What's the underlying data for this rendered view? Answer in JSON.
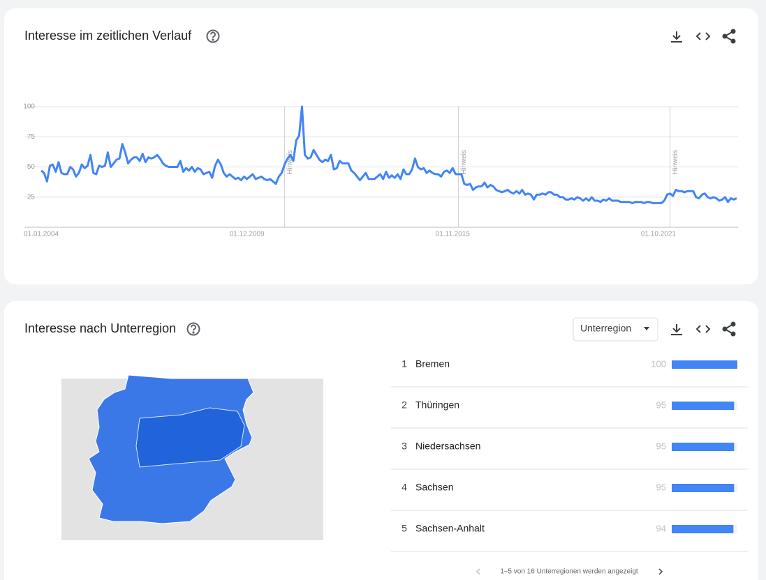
{
  "timeline_card": {
    "title": "Interesse im zeitlichen Verlauf",
    "chart_data": {
      "type": "line",
      "categories": [
        "01.01.2004",
        null,
        null,
        null,
        null,
        null,
        null,
        null,
        null,
        null,
        null,
        null,
        null,
        null,
        null,
        null,
        null,
        null,
        null,
        null,
        null,
        null,
        null,
        null,
        null,
        null,
        null,
        null,
        null,
        null,
        null,
        null,
        null,
        null,
        null,
        null,
        null,
        null,
        null,
        null,
        null,
        null,
        null,
        null,
        null,
        null,
        null,
        null,
        null,
        null,
        null,
        null,
        null,
        null,
        null,
        null,
        null,
        null,
        null,
        null,
        null,
        null,
        null,
        null,
        null,
        null,
        null,
        null,
        null,
        null,
        null,
        "01.12.2009",
        null,
        null,
        null,
        null,
        null,
        null,
        null,
        null,
        null,
        null,
        null,
        null,
        null,
        null,
        null,
        null,
        null,
        null,
        null,
        null,
        null,
        null,
        null,
        null,
        null,
        null,
        null,
        null,
        null,
        null,
        null,
        null,
        null,
        null,
        null,
        null,
        null,
        null,
        null,
        null,
        null,
        null,
        null,
        null,
        null,
        null,
        null,
        null,
        null,
        null,
        null,
        null,
        null,
        null,
        null,
        null,
        null,
        null,
        null,
        null,
        null,
        null,
        null,
        null,
        null,
        null,
        null,
        null,
        null,
        null,
        "01.11.2015",
        null,
        null,
        null,
        null,
        null,
        null,
        null,
        null,
        null,
        null,
        null,
        null,
        null,
        null,
        null,
        null,
        null,
        null,
        null,
        null,
        null,
        null,
        null,
        null,
        null,
        null,
        null,
        null,
        null,
        null,
        null,
        null,
        null,
        null,
        null,
        null,
        null,
        null,
        null,
        null,
        null,
        null,
        null,
        null,
        null,
        null,
        null,
        null,
        null,
        null,
        null,
        null,
        null,
        null,
        null,
        null,
        null,
        null,
        null,
        null,
        null,
        null,
        null,
        null,
        null,
        null,
        null,
        null,
        null,
        null,
        "01.10.2021",
        null,
        null,
        null,
        null,
        null,
        null,
        null,
        null,
        null,
        null,
        null,
        null,
        null,
        null,
        null,
        null,
        null,
        null,
        null,
        null,
        null,
        null,
        null,
        null,
        null,
        null,
        null
      ],
      "series": [
        {
          "color": "#4285f4",
          "values": [
            47,
            45,
            38,
            51,
            52,
            46,
            54,
            45,
            44,
            44,
            50,
            48,
            42,
            45,
            52,
            49,
            51,
            60,
            45,
            44,
            51,
            50,
            51,
            62,
            50,
            53,
            56,
            57,
            69,
            62,
            53,
            56,
            58,
            58,
            55,
            61,
            54,
            58,
            57,
            58,
            60,
            57,
            53,
            51,
            50,
            50,
            50,
            50,
            55,
            46,
            49,
            47,
            50,
            46,
            49,
            48,
            44,
            45,
            46,
            41,
            51,
            56,
            52,
            45,
            42,
            44,
            42,
            40,
            41,
            39,
            42,
            40,
            42,
            44,
            40,
            41,
            42,
            40,
            39,
            40,
            38,
            36,
            42,
            45,
            52,
            57,
            60,
            55,
            72,
            76,
            100,
            60,
            57,
            58,
            64,
            60,
            56,
            54,
            56,
            55,
            60,
            48,
            49,
            55,
            53,
            53,
            53,
            47,
            45,
            42,
            39,
            42,
            45,
            40,
            40,
            40,
            42,
            44,
            40,
            46,
            41,
            43,
            41,
            44,
            40,
            48,
            44,
            44,
            48,
            57,
            50,
            48,
            49,
            45,
            47,
            45,
            44,
            44,
            42,
            46,
            47,
            45,
            49,
            44,
            44,
            44,
            36,
            35,
            36,
            31,
            33,
            34,
            34,
            37,
            33,
            35,
            34,
            31,
            30,
            29,
            30,
            31,
            29,
            28,
            30,
            28,
            31,
            27,
            28,
            27,
            23,
            27,
            27,
            28,
            27,
            29,
            29,
            27,
            27,
            25,
            25,
            23,
            23,
            24,
            23,
            25,
            24,
            22,
            24,
            22,
            25,
            22,
            22,
            21,
            23,
            22,
            24,
            22,
            22,
            22,
            21,
            21,
            21,
            21,
            20,
            21,
            21,
            21,
            20,
            21,
            21,
            20,
            20,
            20,
            20,
            22,
            27,
            28,
            26,
            31,
            30,
            30,
            29,
            30,
            30,
            30,
            25,
            24,
            27,
            28,
            25,
            24,
            25,
            24,
            22,
            23,
            25,
            21,
            24,
            23,
            24
          ]
        }
      ],
      "ylim": [
        0,
        100
      ],
      "yticks": [
        25,
        50,
        75,
        100
      ],
      "grid": true,
      "annotations": [
        "Hinweis",
        "Hinweis",
        "Hinweis"
      ]
    }
  },
  "region_card": {
    "title": "Interesse nach Unterregion",
    "dropdown": "Unterregion",
    "rows": [
      {
        "rank": "1",
        "name": "Bremen",
        "value": 100
      },
      {
        "rank": "2",
        "name": "Thüringen",
        "value": 95
      },
      {
        "rank": "3",
        "name": "Niedersachsen",
        "value": 95
      },
      {
        "rank": "4",
        "name": "Sachsen",
        "value": 95
      },
      {
        "rank": "5",
        "name": "Sachsen-Anhalt",
        "value": 94
      }
    ],
    "bar_color": "#4285f4",
    "pagination": "1–5 von 16 Unterregionen werden angezeigt"
  }
}
